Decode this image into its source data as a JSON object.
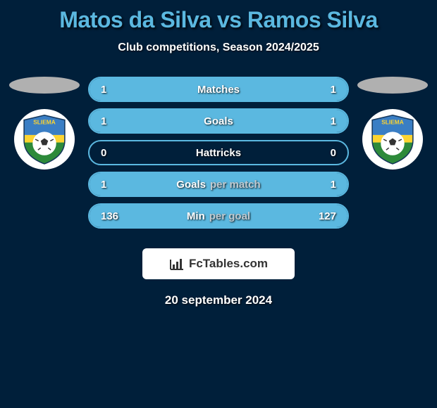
{
  "title": "Matos da Silva vs Ramos Silva",
  "subtitle": "Club competitions, Season 2024/2025",
  "date": "20 september 2024",
  "badge": "FcTables.com",
  "colors": {
    "bg": "#001f3a",
    "accent": "#5bb8e0",
    "fillLeft": "#5bb8e0",
    "fillRight": "#5bb8e0",
    "white": "#ffffff",
    "barBorder": "#5bb8e0",
    "dim": "#c0cad0"
  },
  "barHeight": 36,
  "rows": [
    {
      "label": "Matches",
      "dim": "",
      "left": "1",
      "right": "1",
      "leftPct": 50,
      "rightPct": 50,
      "fillLeft": true,
      "fillRight": true
    },
    {
      "label": "Goals",
      "dim": "",
      "left": "1",
      "right": "1",
      "leftPct": 50,
      "rightPct": 50,
      "fillLeft": true,
      "fillRight": true
    },
    {
      "label": "Hattricks",
      "dim": "",
      "left": "0",
      "right": "0",
      "leftPct": 50,
      "rightPct": 50,
      "fillLeft": false,
      "fillRight": false
    },
    {
      "label": "Goals",
      "dim": "per match",
      "left": "1",
      "right": "1",
      "leftPct": 50,
      "rightPct": 50,
      "fillLeft": true,
      "fillRight": true
    },
    {
      "label": "Min",
      "dim": "per goal",
      "left": "136",
      "right": "127",
      "leftPct": 52,
      "rightPct": 48,
      "fillLeft": true,
      "fillRight": true
    }
  ],
  "clubLogo": {
    "topColor": "#3a7ec4",
    "midColor": "#fdd430",
    "ballColor": "#ffffff",
    "ballPattern": "#333333",
    "grassColor": "#2d8a3a",
    "bannerText": "SLIEMA"
  }
}
